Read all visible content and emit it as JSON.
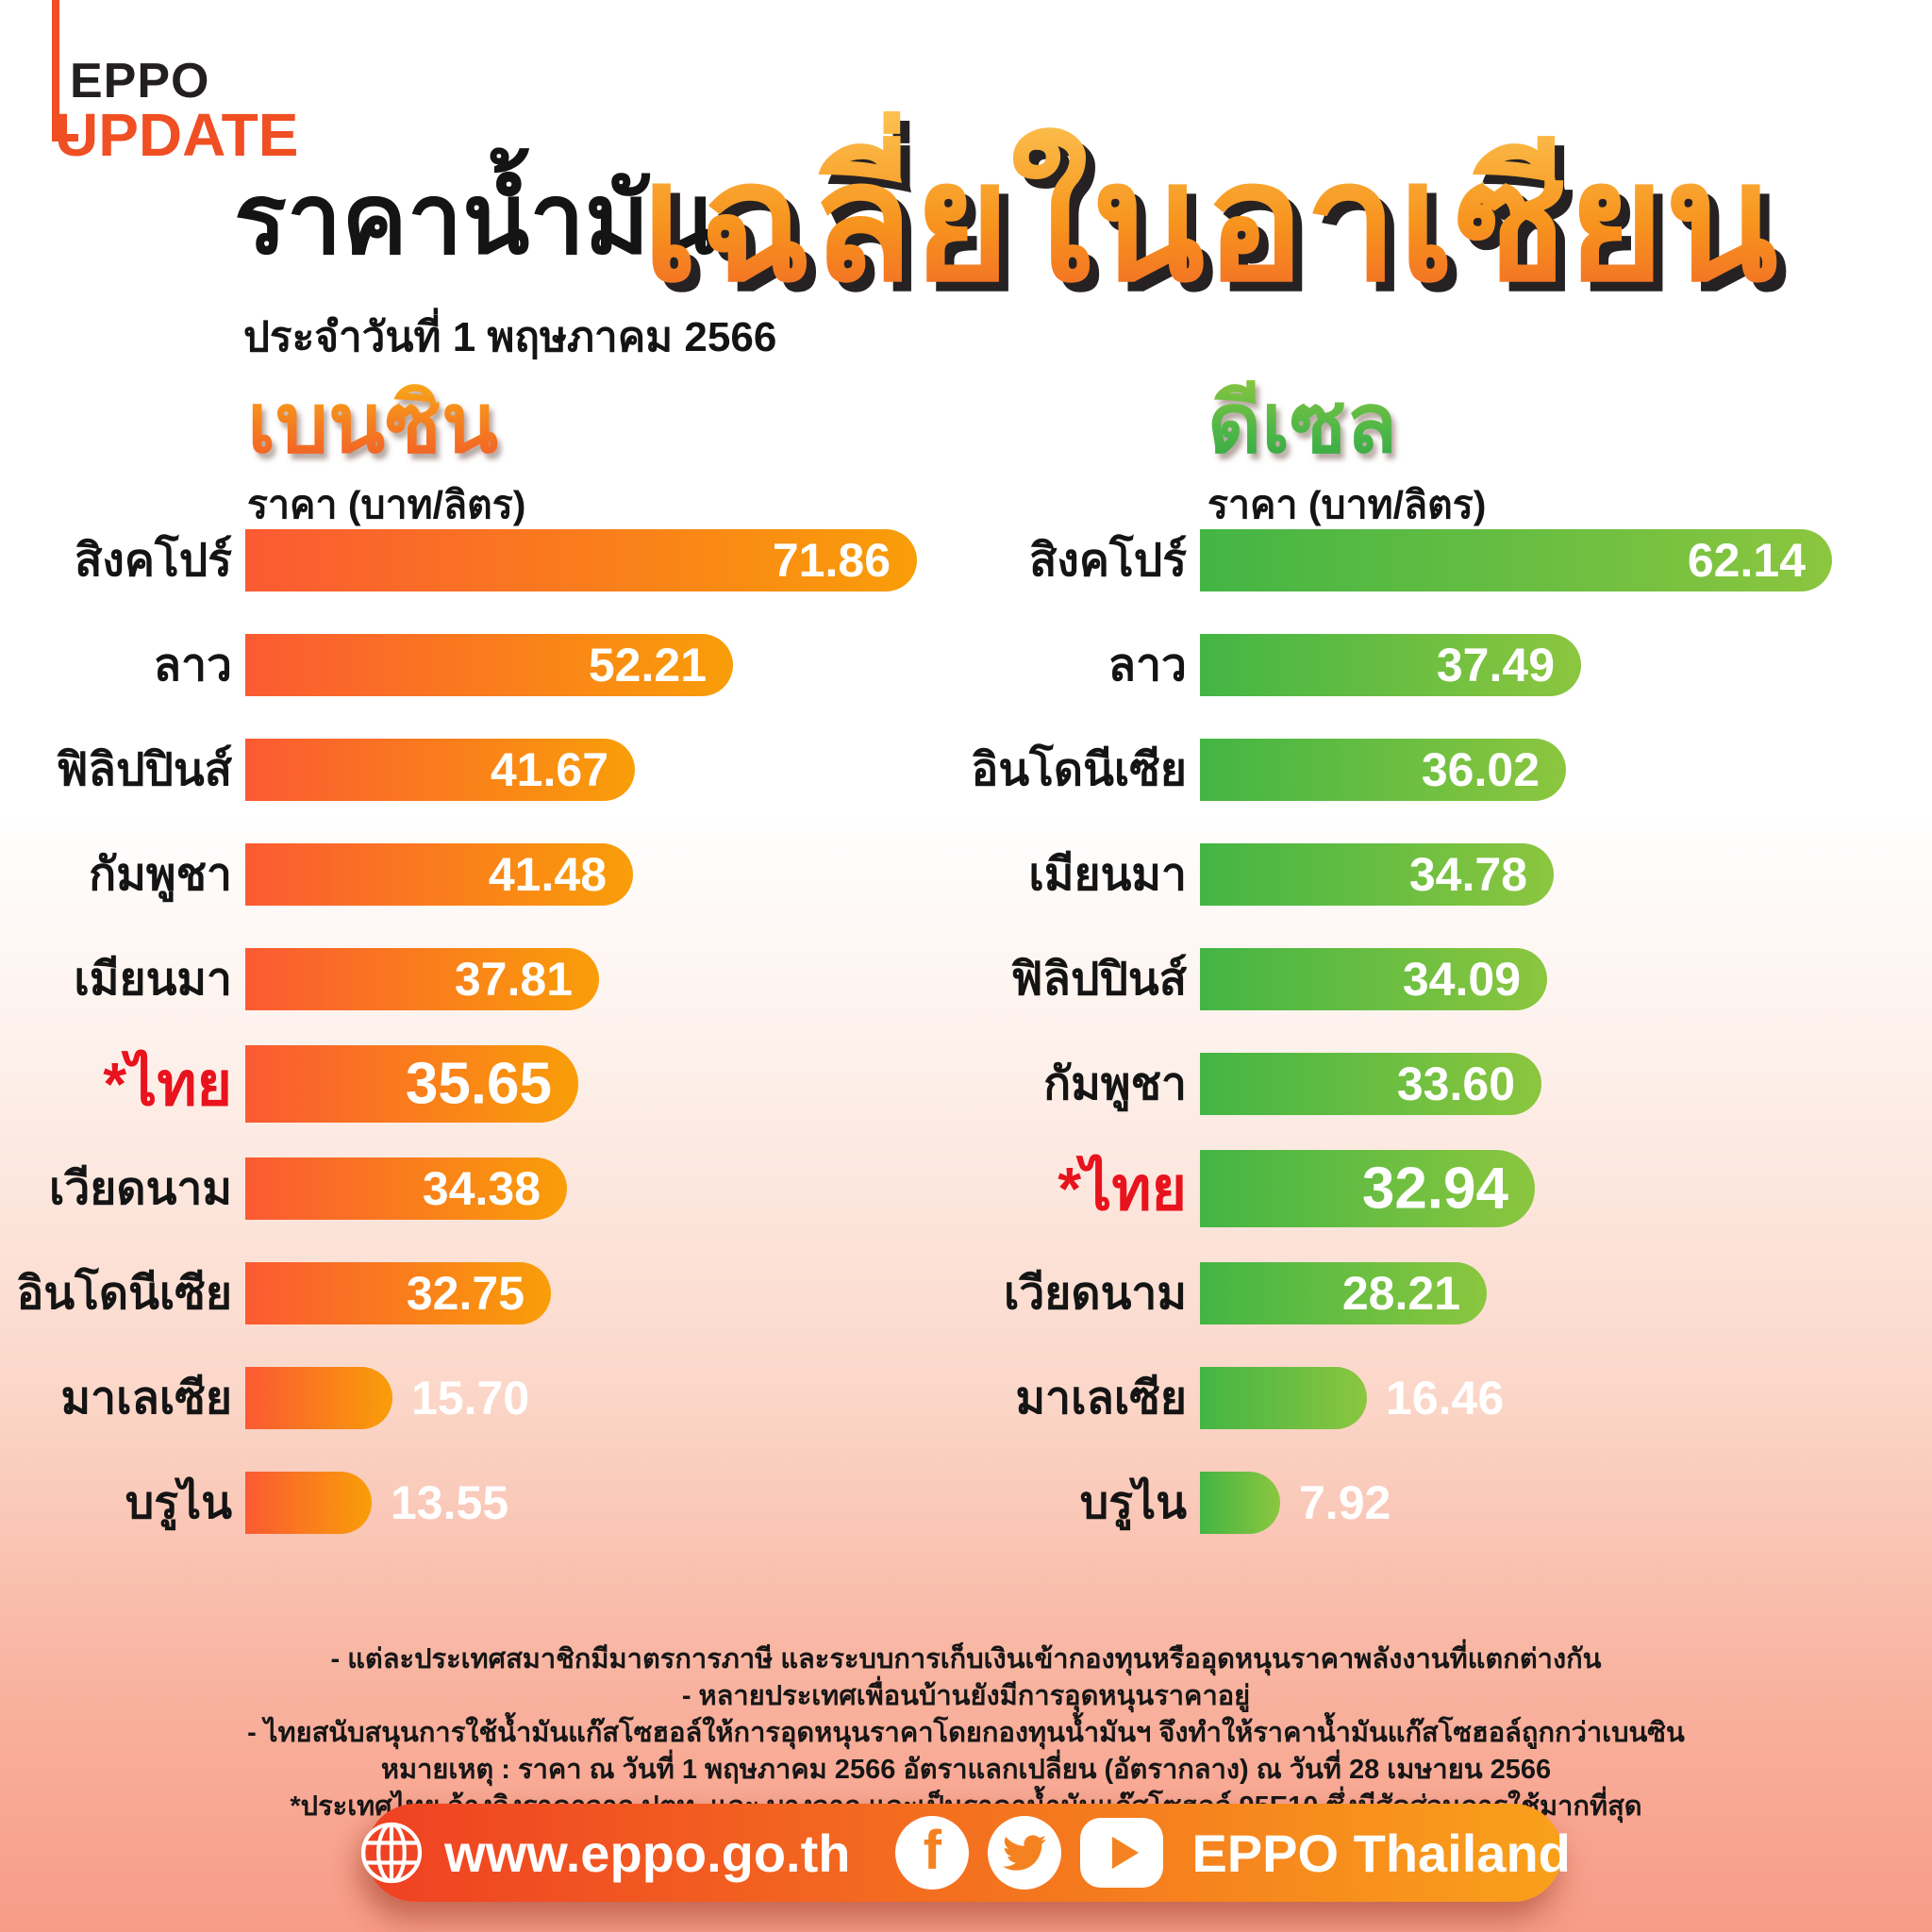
{
  "logo": {
    "top": "EPPO",
    "bottom": "UPDATE"
  },
  "header": {
    "title": "ราคาน้ำมัน",
    "date_line": "ประจำวันที่ 1 พฤษภาคม 2566",
    "big_title": "เฉลี่ยในอาเซียน"
  },
  "chart_data": [
    {
      "type": "bar",
      "orientation": "horizontal",
      "title": "เบนซิน",
      "unit": "ราคา (บาท/ลิตร)",
      "categories": [
        "สิงคโปร์",
        "ลาว",
        "ฟิลิปปินส์",
        "กัมพูชา",
        "เมียนมา",
        "*ไทย",
        "เวียดนาม",
        "อินโดนีเซีย",
        "มาเลเซีย",
        "บรูไน"
      ],
      "values": [
        71.86,
        52.21,
        41.67,
        41.48,
        37.81,
        35.65,
        34.38,
        32.75,
        15.7,
        13.55
      ],
      "highlight": "*ไทย",
      "xlim": [
        0,
        71.86
      ],
      "bar_gradient": [
        "#FB5A32",
        "#F99E08"
      ],
      "value_label_color": "#FFFFFF",
      "legend": "none",
      "grid": false
    },
    {
      "type": "bar",
      "orientation": "horizontal",
      "title": "ดีเซล",
      "unit": "ราคา (บาท/ลิตร)",
      "categories": [
        "สิงคโปร์",
        "ลาว",
        "อินโดนีเซีย",
        "เมียนมา",
        "ฟิลิปปินส์",
        "กัมพูชา",
        "*ไทย",
        "เวียดนาม",
        "มาเลเซีย",
        "บรูไน"
      ],
      "values": [
        62.14,
        37.49,
        36.02,
        34.78,
        34.09,
        33.6,
        32.94,
        28.21,
        16.46,
        7.92
      ],
      "highlight": "*ไทย",
      "xlim": [
        0,
        62.14
      ],
      "bar_gradient": [
        "#43B544",
        "#8CC63F"
      ],
      "value_label_color": "#FFFFFF",
      "legend": "none",
      "grid": false
    }
  ],
  "footnotes": [
    "- แต่ละประเทศสมาชิกมีมาตรการภาษี และระบบการเก็บเงินเข้ากองทุนหรืออุดหนุนราคาพลังงานที่แตกต่างกัน",
    "- หลายประเทศเพื่อนบ้านยังมีการอุดหนุนราคาอยู่",
    "- ไทยสนับสนุนการใช้น้ำมันแก๊สโซฮอล์ให้การอุดหนุนราคาโดยกองทุนน้ำมันฯ จึงทำให้ราคาน้ำมันแก๊สโซฮอล์ถูกกว่าเบนซิน",
    "หมายเหตุ : ราคา ณ วันที่ 1 พฤษภาคม 2566 อัตราแลกเปลี่ยน (อัตรากลาง) ณ วันที่ 28 เมษายน 2566",
    "*ประเทศไทย อ้างอิงราคาจาก ปตท. และ บางจาก และเป็นราคาน้ำมันแก๊สโซฮอล์ 95E10 ซึ่งมีสัดส่วนการใช้มากที่สุด"
  ],
  "footer": {
    "website": "www.eppo.go.th",
    "brand": "EPPO Thailand",
    "icons": [
      "globe",
      "facebook",
      "twitter",
      "youtube"
    ]
  },
  "colors": {
    "brand_red": "#F04E23",
    "highlight_red": "#E8131D",
    "big_title_gradient": [
      "#FCC250",
      "#F15A29"
    ],
    "benzine_header_gradient": [
      "#FBAE17",
      "#F1592A"
    ],
    "diesel_header_gradient": [
      "#8BC63E",
      "#2FA644"
    ],
    "footer_gradient": [
      "#EF4123",
      "#F9A01B"
    ],
    "background_bottom": "#F79C87",
    "social_glyph": "#F58220"
  }
}
